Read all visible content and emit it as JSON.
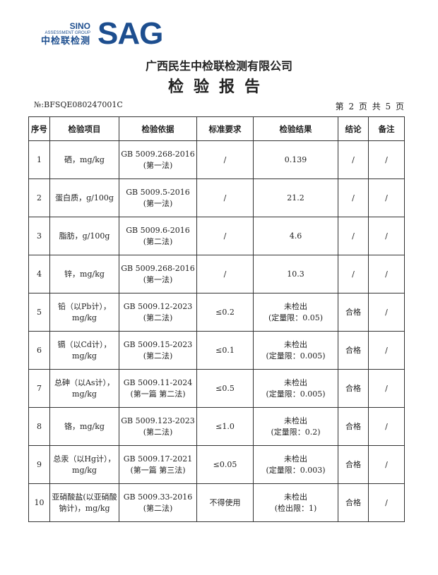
{
  "logo": {
    "line1": "SINO",
    "line2": "ASSESSMENT GROUP",
    "line3": "中检联检测",
    "mark": "SAG"
  },
  "company": "广西民生中检联检测有限公司",
  "title": "检验报告",
  "report_no": "№:BFSQE080247001C",
  "page_info": "第 2 页 共 5 页",
  "table": {
    "headers": [
      "序号",
      "检验项目",
      "检验依据",
      "标准要求",
      "检验结果",
      "结论",
      "备注"
    ],
    "rows": [
      {
        "no": "1",
        "item": "硒，mg/kg",
        "basis1": "GB 5009.268-2016",
        "basis2": "(第一法)",
        "req": "/",
        "res1": "0.139",
        "res2": "",
        "concl": "/",
        "note": "/"
      },
      {
        "no": "2",
        "item": "蛋白质，g/100g",
        "basis1": "GB 5009.5-2016",
        "basis2": "(第一法)",
        "req": "/",
        "res1": "21.2",
        "res2": "",
        "concl": "/",
        "note": "/"
      },
      {
        "no": "3",
        "item": "脂肪，g/100g",
        "basis1": "GB 5009.6-2016",
        "basis2": "(第二法)",
        "req": "/",
        "res1": "4.6",
        "res2": "",
        "concl": "/",
        "note": "/"
      },
      {
        "no": "4",
        "item": "锌，mg/kg",
        "basis1": "GB 5009.268-2016",
        "basis2": "(第一法)",
        "req": "/",
        "res1": "10.3",
        "res2": "",
        "concl": "/",
        "note": "/"
      },
      {
        "no": "5",
        "item": "铅（以Pb计），mg/kg",
        "basis1": "GB 5009.12-2023",
        "basis2": "(第二法)",
        "req": "≤0.2",
        "res1": "未检出",
        "res2": "(定量限：0.05)",
        "concl": "合格",
        "note": "/"
      },
      {
        "no": "6",
        "item": "镉（以Cd计），mg/kg",
        "basis1": "GB 5009.15-2023",
        "basis2": "(第二法)",
        "req": "≤0.1",
        "res1": "未检出",
        "res2": "(定量限：0.005)",
        "concl": "合格",
        "note": "/"
      },
      {
        "no": "7",
        "item": "总砷（以As计），mg/kg",
        "basis1": "GB 5009.11-2024",
        "basis2": "(第一篇 第二法)",
        "req": "≤0.5",
        "res1": "未检出",
        "res2": "(定量限：0.005)",
        "concl": "合格",
        "note": "/"
      },
      {
        "no": "8",
        "item": "铬，mg/kg",
        "basis1": "GB 5009.123-2023",
        "basis2": "(第二法)",
        "req": "≤1.0",
        "res1": "未检出",
        "res2": "(定量限：0.2)",
        "concl": "合格",
        "note": "/"
      },
      {
        "no": "9",
        "item": "总汞（以Hg计），mg/kg",
        "basis1": "GB 5009.17-2021",
        "basis2": "(第一篇 第三法)",
        "req": "≤0.05",
        "res1": "未检出",
        "res2": "(定量限：0.003)",
        "concl": "合格",
        "note": "/"
      },
      {
        "no": "10",
        "item": "亚硝酸盐(以亚硝酸钠计)，mg/kg",
        "basis1": "GB 5009.33-2016",
        "basis2": "(第二法)",
        "req": "不得使用",
        "res1": "未检出",
        "res2": "(检出限：1)",
        "concl": "合格",
        "note": "/"
      }
    ]
  }
}
